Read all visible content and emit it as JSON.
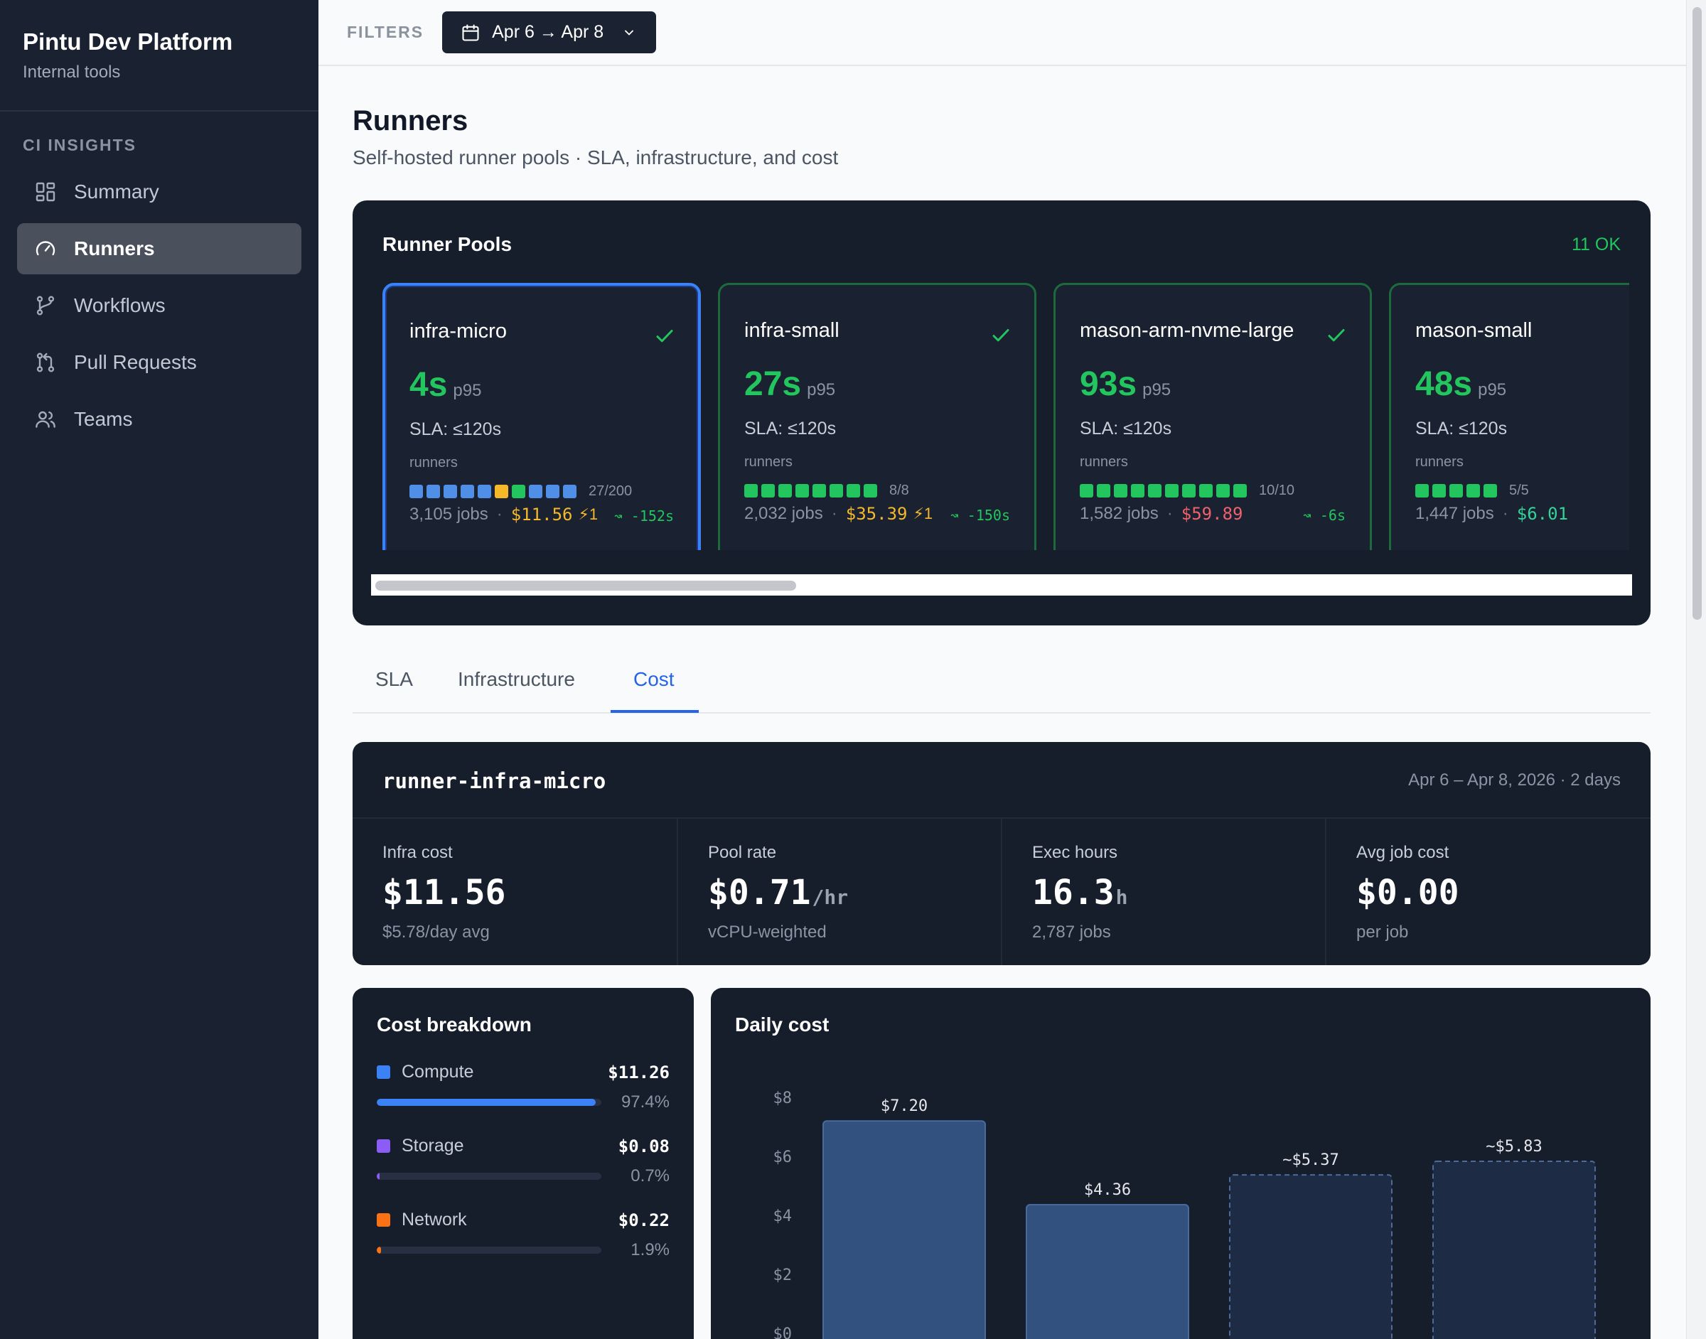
{
  "brand": {
    "title": "Pintu Dev Platform",
    "subtitle": "Internal tools"
  },
  "sidebar": {
    "section": "CI INSIGHTS",
    "items": [
      {
        "label": "Summary",
        "icon": "grid-icon",
        "active": false
      },
      {
        "label": "Runners",
        "icon": "gauge-icon",
        "active": true
      },
      {
        "label": "Workflows",
        "icon": "branch-icon",
        "active": false
      },
      {
        "label": "Pull Requests",
        "icon": "pull-request-icon",
        "active": false
      },
      {
        "label": "Teams",
        "icon": "users-icon",
        "active": false
      }
    ]
  },
  "filters": {
    "label": "FILTERS",
    "date_range": "Apr 6 → Apr 8"
  },
  "page": {
    "title": "Runners",
    "subtitle": "Self-hosted runner pools · SLA, infrastructure, and cost"
  },
  "pools": {
    "title": "Runner Pools",
    "status": "11 OK",
    "cards": [
      {
        "name": "infra-micro",
        "p95": "4s",
        "p95_unit": "p95",
        "sla": "SLA: ≤120s",
        "runners_label": "runners",
        "squares": [
          "#4f8fe8",
          "#4f8fe8",
          "#4f8fe8",
          "#4f8fe8",
          "#4f8fe8",
          "#f5b829",
          "#22c55e",
          "#4f8fe8",
          "#4f8fe8",
          "#4f8fe8"
        ],
        "count": "27/200",
        "jobs": "3,105 jobs",
        "cost": "$11.56",
        "cost_color": "#f5b829",
        "bolt": "⚡1",
        "delta": "↝ -152s",
        "delta_color": "#22c55e",
        "selected": true
      },
      {
        "name": "infra-small",
        "p95": "27s",
        "p95_unit": "p95",
        "sla": "SLA: ≤120s",
        "runners_label": "runners",
        "squares": [
          "#22c55e",
          "#22c55e",
          "#22c55e",
          "#22c55e",
          "#22c55e",
          "#22c55e",
          "#22c55e",
          "#22c55e"
        ],
        "count": "8/8",
        "jobs": "2,032 jobs",
        "cost": "$35.39",
        "cost_color": "#f5b829",
        "bolt": "⚡1",
        "delta": "↝ -150s",
        "delta_color": "#22c55e",
        "selected": false
      },
      {
        "name": "mason-arm-nvme-large",
        "p95": "93s",
        "p95_unit": "p95",
        "sla": "SLA: ≤120s",
        "runners_label": "runners",
        "squares": [
          "#22c55e",
          "#22c55e",
          "#22c55e",
          "#22c55e",
          "#22c55e",
          "#22c55e",
          "#22c55e",
          "#22c55e",
          "#22c55e",
          "#22c55e"
        ],
        "count": "10/10",
        "jobs": "1,582 jobs",
        "cost": "$59.89",
        "cost_color": "#f0616d",
        "bolt": "",
        "delta": "↝ -6s",
        "delta_color": "#22c55e",
        "selected": false
      },
      {
        "name": "mason-small",
        "p95": "48s",
        "p95_unit": "p95",
        "sla": "SLA: ≤120s",
        "runners_label": "runners",
        "squares": [
          "#22c55e",
          "#22c55e",
          "#22c55e",
          "#22c55e",
          "#22c55e"
        ],
        "count": "5/5",
        "jobs": "1,447 jobs",
        "cost": "$6.01",
        "cost_color": "#34d399",
        "bolt": "",
        "delta": "↝",
        "delta_color": "#22c55e",
        "selected": false
      }
    ]
  },
  "tabs": [
    {
      "label": "SLA",
      "active": false
    },
    {
      "label": "Infrastructure",
      "active": false
    },
    {
      "label": "Cost",
      "active": true
    }
  ],
  "summary": {
    "name": "runner-infra-micro",
    "range": "Apr 6 – Apr 8, 2026 · 2 days",
    "metrics": [
      {
        "label": "Infra cost",
        "value": "$11.56",
        "unit": "",
        "note": "$5.78/day avg"
      },
      {
        "label": "Pool rate",
        "value": "$0.71",
        "unit": "/hr",
        "note": "vCPU-weighted"
      },
      {
        "label": "Exec hours",
        "value": "16.3",
        "unit": "h",
        "note": "2,787 jobs"
      },
      {
        "label": "Avg job cost",
        "value": "$0.00",
        "unit": "",
        "note": "per job"
      }
    ]
  },
  "breakdown": {
    "title": "Cost breakdown",
    "items": [
      {
        "label": "Compute",
        "amount": "$11.26",
        "pct_label": "97.4%",
        "fraction": 0.974,
        "color": "#3b82f6"
      },
      {
        "label": "Storage",
        "amount": "$0.08",
        "pct_label": "0.7%",
        "fraction": 0.007,
        "color": "#8b5cf6"
      },
      {
        "label": "Network",
        "amount": "$0.22",
        "pct_label": "1.9%",
        "fraction": 0.019,
        "color": "#f97316"
      }
    ]
  },
  "daily": {
    "title": "Daily cost"
  },
  "chart_data": {
    "type": "bar",
    "title": "Daily cost",
    "xlabel": "",
    "ylabel": "",
    "ylim": [
      0,
      8
    ],
    "yticks": [
      "$0",
      "$2",
      "$4",
      "$6",
      "$8"
    ],
    "values": [
      7.2,
      4.36,
      5.37,
      5.83
    ],
    "labels": [
      "$7.20",
      "$4.36",
      "~$5.37",
      "~$5.83"
    ],
    "estimated": [
      false,
      false,
      true,
      true
    ],
    "colors": {
      "actual": "#33517f",
      "estimated_fill": "#1e2b44",
      "estimated_stroke": "#4d6a99"
    }
  }
}
